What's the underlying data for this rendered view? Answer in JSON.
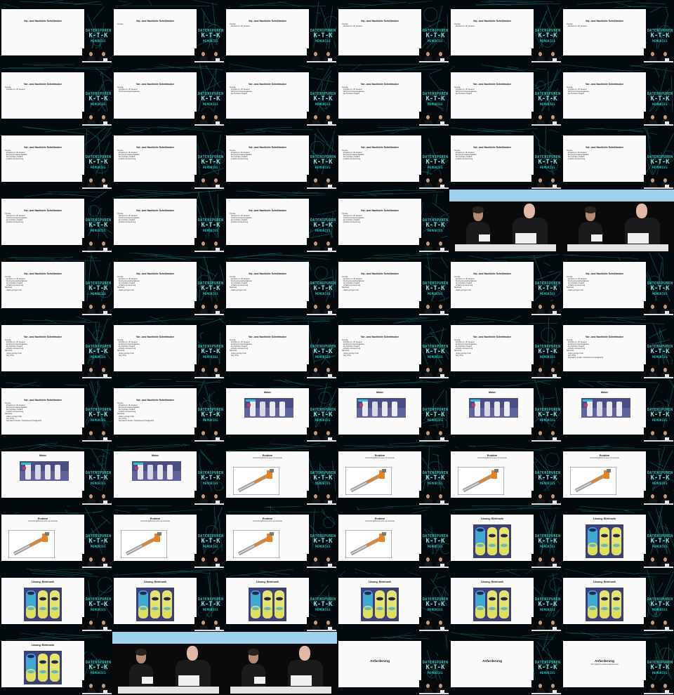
{
  "event_logo": [
    "DATENSPUREN",
    "K-T-K",
    "MEMORIES"
  ],
  "slides": {
    "vortrag": {
      "title": "Vor- und Nachteile Schrittmotor",
      "heading_only": "Vorteile",
      "bullets": [
        "Vorteile",
        "Position ist z.B. bekannt",
        "Drehmomentgenauigkeiten",
        "bei Schritten möglich",
        "einfache Ansteuerung",
        "Nachteile",
        "relativ geringe Kraft",
        "laut, Hitze",
        "überwacht: Fehler / Schrittverlust (Stallguard)"
      ]
    },
    "motor": {
      "title": "Motor"
    },
    "problem": {
      "title": "Problem",
      "subtitle": "(Verbindungskomponente mit Gewinde)"
    },
    "loesung": {
      "title": "Lösung: Elektronik"
    },
    "anforderung": {
      "title": "Anforderung",
      "bullet": "Soll möglichst einfach bedienbar sein"
    }
  },
  "cells": [
    {
      "type": "slide",
      "layout": "title",
      "slide": "vortrag"
    },
    {
      "type": "slide",
      "layout": "bullets",
      "slide": "vortrag",
      "count": 1,
      "heading": true
    },
    {
      "type": "slide",
      "layout": "bullets",
      "slide": "vortrag",
      "count": 2
    },
    {
      "type": "slide",
      "layout": "bullets",
      "slide": "vortrag",
      "count": 2
    },
    {
      "type": "slide",
      "layout": "bullets",
      "slide": "vortrag",
      "count": 2
    },
    {
      "type": "slide",
      "layout": "bullets",
      "slide": "vortrag",
      "count": 2
    },
    {
      "type": "slide",
      "layout": "bullets",
      "slide": "vortrag",
      "count": 2
    },
    {
      "type": "slide",
      "layout": "bullets",
      "slide": "vortrag",
      "count": 3
    },
    {
      "type": "slide",
      "layout": "bullets",
      "slide": "vortrag",
      "count": 4
    },
    {
      "type": "slide",
      "layout": "bullets",
      "slide": "vortrag",
      "count": 4
    },
    {
      "type": "slide",
      "layout": "bullets",
      "slide": "vortrag",
      "count": 4
    },
    {
      "type": "slide",
      "layout": "bullets",
      "slide": "vortrag",
      "count": 4
    },
    {
      "type": "slide",
      "layout": "bullets",
      "slide": "vortrag",
      "count": 5
    },
    {
      "type": "slide",
      "layout": "bullets",
      "slide": "vortrag",
      "count": 5
    },
    {
      "type": "slide",
      "layout": "bullets",
      "slide": "vortrag",
      "count": 5
    },
    {
      "type": "slide",
      "layout": "bullets",
      "slide": "vortrag",
      "count": 5
    },
    {
      "type": "slide",
      "layout": "bullets",
      "slide": "vortrag",
      "count": 5
    },
    {
      "type": "slide",
      "layout": "bullets",
      "slide": "vortrag",
      "count": 5
    },
    {
      "type": "slide",
      "layout": "bullets",
      "slide": "vortrag",
      "count": 5
    },
    {
      "type": "slide",
      "layout": "bullets",
      "slide": "vortrag",
      "count": 5
    },
    {
      "type": "slide",
      "layout": "bullets",
      "slide": "vortrag",
      "count": 5
    },
    {
      "type": "slide",
      "layout": "bullets",
      "slide": "vortrag",
      "count": 5
    },
    {
      "type": "stage"
    },
    {
      "type": "stage"
    },
    {
      "type": "slide",
      "layout": "bullets",
      "slide": "vortrag",
      "count": 7
    },
    {
      "type": "slide",
      "layout": "bullets",
      "slide": "vortrag",
      "count": 7
    },
    {
      "type": "slide",
      "layout": "bullets",
      "slide": "vortrag",
      "count": 7
    },
    {
      "type": "slide",
      "layout": "bullets",
      "slide": "vortrag",
      "count": 7
    },
    {
      "type": "slide",
      "layout": "bullets",
      "slide": "vortrag",
      "count": 7
    },
    {
      "type": "slide",
      "layout": "bullets",
      "slide": "vortrag",
      "count": 7
    },
    {
      "type": "slide",
      "layout": "bullets",
      "slide": "vortrag",
      "count": 8
    },
    {
      "type": "slide",
      "layout": "bullets",
      "slide": "vortrag",
      "count": 8
    },
    {
      "type": "slide",
      "layout": "bullets",
      "slide": "vortrag",
      "count": 8
    },
    {
      "type": "slide",
      "layout": "bullets",
      "slide": "vortrag",
      "count": 8
    },
    {
      "type": "slide",
      "layout": "bullets",
      "slide": "vortrag",
      "count": 8
    },
    {
      "type": "slide",
      "layout": "bullets",
      "slide": "vortrag",
      "count": 9
    },
    {
      "type": "slide",
      "layout": "bullets",
      "slide": "vortrag",
      "count": 9
    },
    {
      "type": "slide",
      "layout": "bullets",
      "slide": "vortrag",
      "count": 9
    },
    {
      "type": "slide",
      "layout": "motor",
      "slide": "motor"
    },
    {
      "type": "slide",
      "layout": "motor",
      "slide": "motor"
    },
    {
      "type": "slide",
      "layout": "motor",
      "slide": "motor"
    },
    {
      "type": "slide",
      "layout": "motor",
      "slide": "motor"
    },
    {
      "type": "slide",
      "layout": "motor",
      "slide": "motor"
    },
    {
      "type": "slide",
      "layout": "motor",
      "slide": "motor"
    },
    {
      "type": "slide",
      "layout": "problem",
      "slide": "problem"
    },
    {
      "type": "slide",
      "layout": "problem",
      "slide": "problem"
    },
    {
      "type": "slide",
      "layout": "problem",
      "slide": "problem"
    },
    {
      "type": "slide",
      "layout": "problem",
      "slide": "problem"
    },
    {
      "type": "slide",
      "layout": "problem",
      "slide": "problem"
    },
    {
      "type": "slide",
      "layout": "problem",
      "slide": "problem"
    },
    {
      "type": "slide",
      "layout": "problem",
      "slide": "problem"
    },
    {
      "type": "slide",
      "layout": "problem",
      "slide": "problem"
    },
    {
      "type": "slide",
      "layout": "loesung",
      "slide": "loesung"
    },
    {
      "type": "slide",
      "layout": "loesung",
      "slide": "loesung"
    },
    {
      "type": "slide",
      "layout": "loesung",
      "slide": "loesung"
    },
    {
      "type": "slide",
      "layout": "loesung",
      "slide": "loesung"
    },
    {
      "type": "slide",
      "layout": "loesung",
      "slide": "loesung"
    },
    {
      "type": "slide",
      "layout": "loesung",
      "slide": "loesung"
    },
    {
      "type": "slide",
      "layout": "loesung",
      "slide": "loesung"
    },
    {
      "type": "slide",
      "layout": "loesung",
      "slide": "loesung"
    },
    {
      "type": "slide",
      "layout": "loesung",
      "slide": "loesung"
    },
    {
      "type": "stage"
    },
    {
      "type": "stage"
    },
    {
      "type": "slide",
      "layout": "anforderung",
      "slide": "anforderung",
      "bullet": false
    },
    {
      "type": "slide",
      "layout": "anforderung",
      "slide": "anforderung",
      "bullet": false
    },
    {
      "type": "slide",
      "layout": "anforderung",
      "slide": "anforderung",
      "bullet": true
    }
  ]
}
